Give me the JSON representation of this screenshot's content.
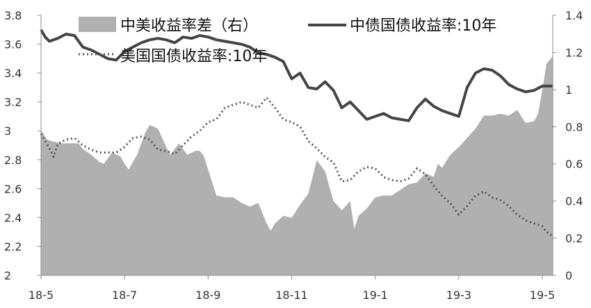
{
  "chart_data": {
    "type": "line",
    "x_tick_labels": [
      "18-5",
      "18-7",
      "18-9",
      "18-11",
      "19-1",
      "19-3",
      "19-5"
    ],
    "x_tick_months": [
      0,
      2,
      4,
      6,
      8,
      10,
      12
    ],
    "x_range_months": [
      0,
      12.25
    ],
    "y_left": {
      "min": 2,
      "max": 3.8,
      "step": 0.2,
      "tick_labels": [
        "2",
        "2.2",
        "2.4",
        "2.6",
        "2.8",
        "3",
        "3.2",
        "3.4",
        "3.6",
        "3.8"
      ]
    },
    "y_right": {
      "min": 0,
      "max": 1.4,
      "step": 0.2,
      "tick_labels": [
        "0",
        "0.2",
        "0.4",
        "0.6",
        "0.8",
        "1",
        "1.2",
        "1.4"
      ]
    },
    "grid": false,
    "legend": [
      {
        "label": "中美收益率差（右）",
        "style": "area",
        "color": "#b0b0b0"
      },
      {
        "label": "中债国债收益率:10年",
        "style": "solid",
        "color": "#444444"
      },
      {
        "label": "美国国债收益率:10年",
        "style": "dotted",
        "color": "#555555"
      }
    ],
    "series": [
      {
        "name": "中美收益率差（右）",
        "axis": "right",
        "style": "area",
        "x": [
          0,
          0.15,
          0.3,
          0.5,
          0.7,
          0.9,
          1.0,
          1.2,
          1.4,
          1.5,
          1.7,
          1.9,
          2.0,
          2.1,
          2.3,
          2.5,
          2.6,
          2.8,
          3.0,
          3.1,
          3.3,
          3.5,
          3.7,
          3.8,
          3.9,
          4.0,
          4.2,
          4.4,
          4.6,
          4.8,
          5.0,
          5.2,
          5.4,
          5.5,
          5.6,
          5.8,
          6.0,
          6.2,
          6.4,
          6.6,
          6.8,
          7.0,
          7.2,
          7.4,
          7.5,
          7.6,
          7.8,
          8.0,
          8.2,
          8.4,
          8.6,
          8.8,
          9.0,
          9.2,
          9.4,
          9.5,
          9.6,
          9.8,
          10.0,
          10.2,
          10.4,
          10.6,
          10.8,
          11.0,
          11.2,
          11.4,
          11.6,
          11.8,
          11.9,
          12.0,
          12.1,
          12.25
        ],
        "y": [
          0.78,
          0.73,
          0.72,
          0.71,
          0.71,
          0.71,
          0.68,
          0.65,
          0.61,
          0.6,
          0.66,
          0.64,
          0.6,
          0.57,
          0.65,
          0.77,
          0.81,
          0.79,
          0.69,
          0.65,
          0.71,
          0.65,
          0.67,
          0.67,
          0.64,
          0.57,
          0.43,
          0.42,
          0.42,
          0.39,
          0.37,
          0.39,
          0.28,
          0.24,
          0.28,
          0.32,
          0.31,
          0.38,
          0.44,
          0.62,
          0.56,
          0.4,
          0.35,
          0.4,
          0.25,
          0.32,
          0.36,
          0.42,
          0.43,
          0.43,
          0.46,
          0.49,
          0.5,
          0.55,
          0.53,
          0.6,
          0.58,
          0.65,
          0.69,
          0.74,
          0.79,
          0.86,
          0.86,
          0.87,
          0.86,
          0.89,
          0.82,
          0.83,
          0.87,
          1.0,
          1.14,
          1.18
        ]
      },
      {
        "name": "中债国债收益率:10年",
        "axis": "left",
        "style": "solid",
        "x": [
          0,
          0.1,
          0.2,
          0.4,
          0.6,
          0.8,
          1.0,
          1.2,
          1.4,
          1.6,
          1.8,
          2.0,
          2.2,
          2.4,
          2.6,
          2.8,
          3.0,
          3.2,
          3.4,
          3.6,
          3.8,
          4.0,
          4.2,
          4.4,
          4.6,
          4.8,
          5.0,
          5.2,
          5.4,
          5.6,
          5.8,
          6.0,
          6.2,
          6.4,
          6.6,
          6.8,
          7.0,
          7.2,
          7.4,
          7.6,
          7.8,
          8.0,
          8.2,
          8.4,
          8.6,
          8.8,
          9.0,
          9.2,
          9.4,
          9.6,
          9.8,
          10.0,
          10.2,
          10.4,
          10.6,
          10.8,
          11.0,
          11.2,
          11.4,
          11.6,
          11.8,
          12.0,
          12.25
        ],
        "y": [
          3.7,
          3.65,
          3.62,
          3.64,
          3.67,
          3.66,
          3.58,
          3.56,
          3.53,
          3.5,
          3.49,
          3.55,
          3.58,
          3.61,
          3.63,
          3.64,
          3.63,
          3.61,
          3.65,
          3.64,
          3.66,
          3.65,
          3.63,
          3.62,
          3.61,
          3.6,
          3.58,
          3.54,
          3.53,
          3.51,
          3.48,
          3.36,
          3.4,
          3.3,
          3.29,
          3.34,
          3.28,
          3.16,
          3.2,
          3.14,
          3.08,
          3.1,
          3.12,
          3.09,
          3.08,
          3.07,
          3.16,
          3.22,
          3.17,
          3.14,
          3.12,
          3.1,
          3.3,
          3.4,
          3.43,
          3.42,
          3.38,
          3.32,
          3.29,
          3.27,
          3.28,
          3.31,
          3.31
        ]
      },
      {
        "name": "美国国债收益率:10年",
        "axis": "left",
        "style": "dotted",
        "x": [
          0,
          0.1,
          0.2,
          0.3,
          0.4,
          0.6,
          0.8,
          1.0,
          1.2,
          1.4,
          1.6,
          1.8,
          2.0,
          2.2,
          2.4,
          2.6,
          2.8,
          3.0,
          3.2,
          3.4,
          3.6,
          3.8,
          4.0,
          4.2,
          4.4,
          4.6,
          4.8,
          5.0,
          5.2,
          5.4,
          5.6,
          5.8,
          6.0,
          6.2,
          6.4,
          6.6,
          6.8,
          7.0,
          7.2,
          7.4,
          7.6,
          7.8,
          8.0,
          8.2,
          8.4,
          8.6,
          8.8,
          9.0,
          9.2,
          9.4,
          9.6,
          9.8,
          10.0,
          10.2,
          10.4,
          10.6,
          10.8,
          11.0,
          11.2,
          11.4,
          11.6,
          11.8,
          12.0,
          12.1,
          12.2,
          12.25
        ],
        "y": [
          2.98,
          2.93,
          2.88,
          2.82,
          2.91,
          2.94,
          2.95,
          2.9,
          2.87,
          2.85,
          2.85,
          2.85,
          2.89,
          2.95,
          2.96,
          2.94,
          2.87,
          2.86,
          2.84,
          2.9,
          2.96,
          3.0,
          3.06,
          3.08,
          3.16,
          3.18,
          3.2,
          3.18,
          3.16,
          3.23,
          3.16,
          3.08,
          3.06,
          3.03,
          2.93,
          2.88,
          2.82,
          2.78,
          2.65,
          2.66,
          2.72,
          2.75,
          2.74,
          2.68,
          2.66,
          2.65,
          2.67,
          2.74,
          2.7,
          2.62,
          2.55,
          2.5,
          2.42,
          2.48,
          2.55,
          2.58,
          2.54,
          2.52,
          2.48,
          2.42,
          2.38,
          2.36,
          2.34,
          2.3,
          2.28,
          2.28
        ]
      }
    ]
  }
}
